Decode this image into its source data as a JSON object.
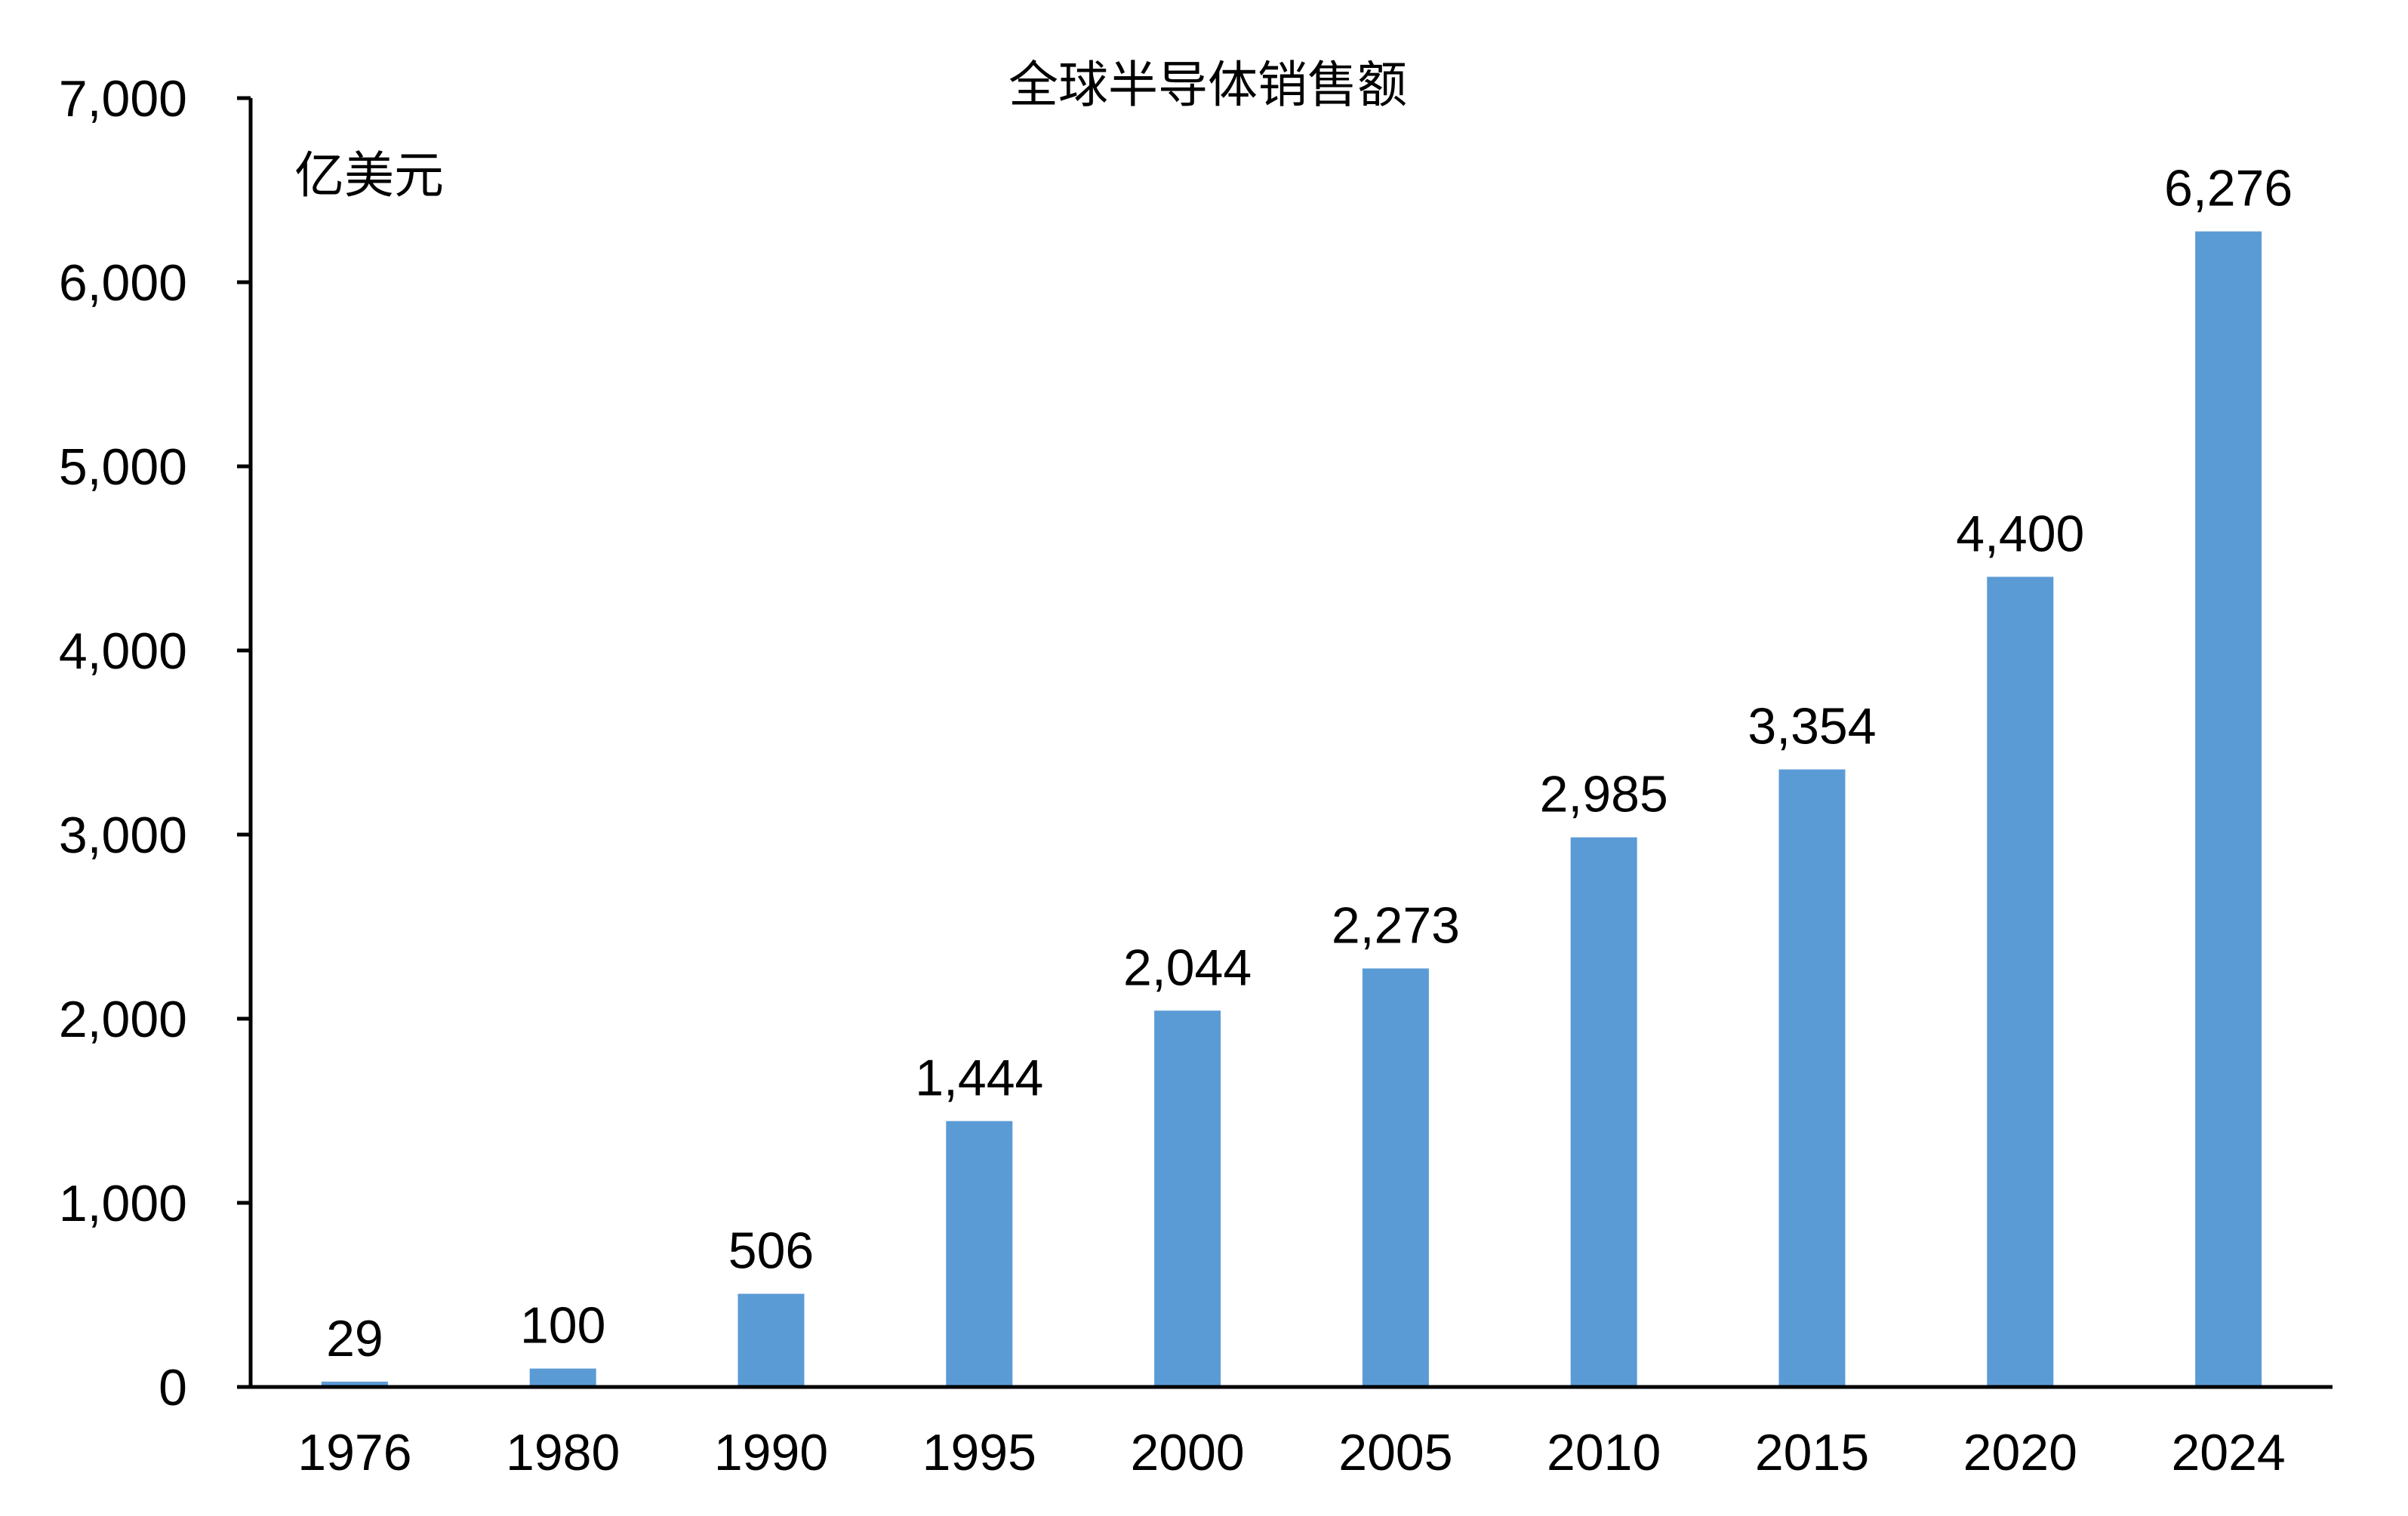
{
  "chart_data": {
    "type": "bar",
    "title": "全球半导体销售额",
    "unit_label": "亿美元",
    "xlabel": "",
    "ylabel": "",
    "categories": [
      "1976",
      "1980",
      "1990",
      "1995",
      "2000",
      "2005",
      "2010",
      "2015",
      "2020",
      "2024"
    ],
    "values": [
      29,
      100,
      506,
      1444,
      2044,
      2273,
      2985,
      3354,
      4400,
      6276
    ],
    "data_labels": [
      "29",
      "100",
      "506",
      "1,444",
      "2,044",
      "2,273",
      "2,985",
      "3,354",
      "4,400",
      "6,276"
    ],
    "ylim": [
      0,
      7000
    ],
    "yticks": [
      0,
      1000,
      2000,
      3000,
      4000,
      5000,
      6000,
      7000
    ],
    "ytick_labels": [
      "0",
      "1,000",
      "2,000",
      "3,000",
      "4,000",
      "5,000",
      "6,000",
      "7,000"
    ],
    "grid": false,
    "legend": "none",
    "bar_color": "#5b9bd5",
    "axis_color": "#000000"
  }
}
